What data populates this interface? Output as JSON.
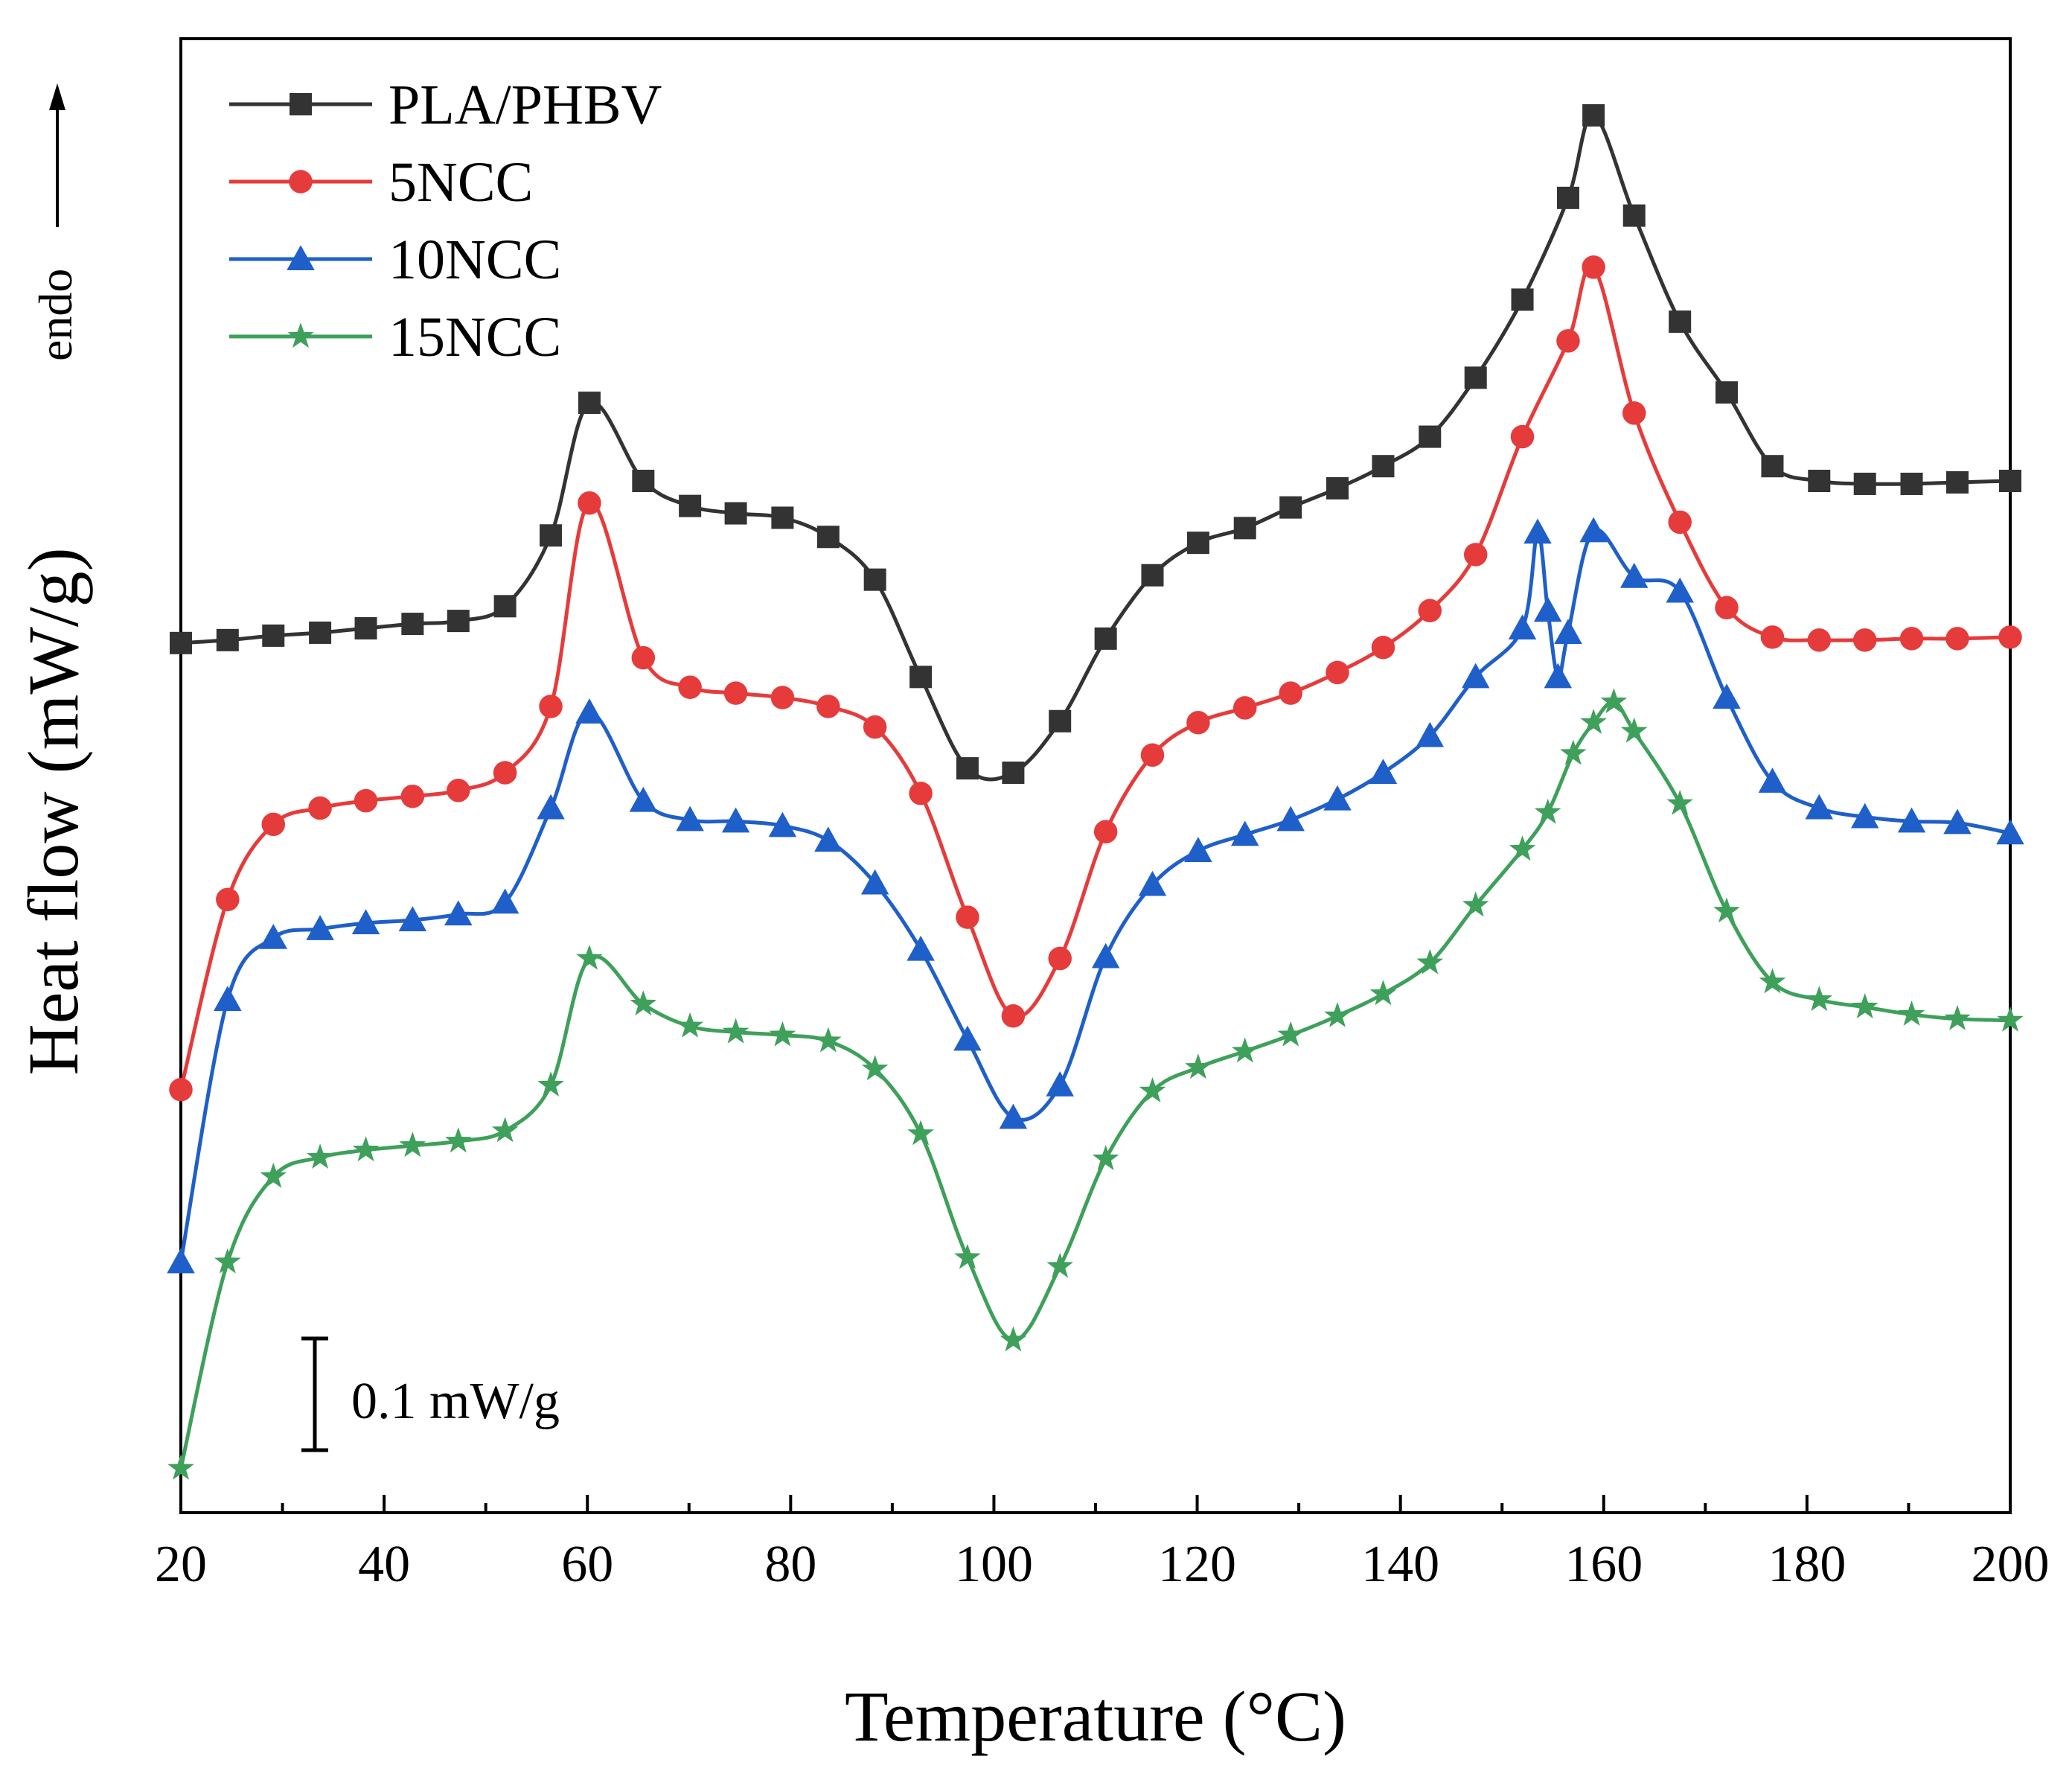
{
  "chart_data": {
    "type": "line",
    "title": "",
    "xlabel": "Temperature (°C)",
    "ylabel": "Heat flow (mW/g)",
    "endo_label": "endo",
    "xlim": [
      20,
      200
    ],
    "ylim": [
      0,
      1
    ],
    "xticks": [
      "20",
      "40",
      "60",
      "80",
      "100",
      "120",
      "140",
      "160",
      "180",
      "200"
    ],
    "yticks_shown": false,
    "grid": false,
    "legend_position": "top-left",
    "scale_bar_label": "0.1 mW/g",
    "series": [
      {
        "name": "PLA/PHBV",
        "color": "#333333",
        "marker": "square",
        "points": [
          [
            20,
            0.59
          ],
          [
            24.6,
            0.592
          ],
          [
            29.1,
            0.595
          ],
          [
            33.7,
            0.597
          ],
          [
            38.2,
            0.6
          ],
          [
            42.8,
            0.603
          ],
          [
            47.3,
            0.605
          ],
          [
            51.9,
            0.615
          ],
          [
            56.4,
            0.663
          ],
          [
            60.2,
            0.753
          ],
          [
            65.5,
            0.7
          ],
          [
            70.1,
            0.683
          ],
          [
            74.6,
            0.678
          ],
          [
            79.2,
            0.675
          ],
          [
            83.7,
            0.662
          ],
          [
            88.3,
            0.633
          ],
          [
            92.8,
            0.567
          ],
          [
            97.4,
            0.505
          ],
          [
            101.9,
            0.502
          ],
          [
            106.5,
            0.537
          ],
          [
            111,
            0.593
          ],
          [
            115.6,
            0.636
          ],
          [
            120.1,
            0.658
          ],
          [
            124.7,
            0.668
          ],
          [
            129.2,
            0.682
          ],
          [
            133.8,
            0.695
          ],
          [
            138.3,
            0.71
          ],
          [
            142.9,
            0.73
          ],
          [
            147.4,
            0.77
          ],
          [
            152,
            0.823
          ],
          [
            156.5,
            0.892
          ],
          [
            159,
            0.948
          ],
          [
            163,
            0.88
          ],
          [
            167.5,
            0.808
          ],
          [
            172.1,
            0.76
          ],
          [
            176.6,
            0.71
          ],
          [
            181.2,
            0.7
          ],
          [
            185.7,
            0.698
          ],
          [
            190.3,
            0.698
          ],
          [
            194.8,
            0.699
          ],
          [
            200,
            0.7
          ]
        ]
      },
      {
        "name": "5NCC",
        "color": "#e63b3b",
        "marker": "circle",
        "points": [
          [
            20,
            0.287
          ],
          [
            24.6,
            0.416
          ],
          [
            29.1,
            0.467
          ],
          [
            33.7,
            0.478
          ],
          [
            38.2,
            0.483
          ],
          [
            42.8,
            0.486
          ],
          [
            47.3,
            0.49
          ],
          [
            51.9,
            0.502
          ],
          [
            56.4,
            0.547
          ],
          [
            60.2,
            0.685
          ],
          [
            65.5,
            0.58
          ],
          [
            70.1,
            0.56
          ],
          [
            74.6,
            0.556
          ],
          [
            79.2,
            0.553
          ],
          [
            83.7,
            0.547
          ],
          [
            88.3,
            0.533
          ],
          [
            92.8,
            0.488
          ],
          [
            97.4,
            0.404
          ],
          [
            101.9,
            0.337
          ],
          [
            106.5,
            0.376
          ],
          [
            111,
            0.462
          ],
          [
            115.6,
            0.514
          ],
          [
            120.1,
            0.536
          ],
          [
            124.7,
            0.546
          ],
          [
            129.2,
            0.556
          ],
          [
            133.8,
            0.57
          ],
          [
            138.3,
            0.587
          ],
          [
            142.9,
            0.612
          ],
          [
            147.4,
            0.65
          ],
          [
            152,
            0.73
          ],
          [
            156.5,
            0.795
          ],
          [
            159,
            0.845
          ],
          [
            163,
            0.746
          ],
          [
            167.5,
            0.672
          ],
          [
            172.1,
            0.614
          ],
          [
            176.6,
            0.594
          ],
          [
            181.2,
            0.592
          ],
          [
            185.7,
            0.592
          ],
          [
            190.3,
            0.593
          ],
          [
            194.8,
            0.593
          ],
          [
            200,
            0.594
          ]
        ]
      },
      {
        "name": "10NCC",
        "color": "#1f5fc9",
        "marker": "triangle",
        "points": [
          [
            20,
            0.17
          ],
          [
            24.6,
            0.348
          ],
          [
            29.1,
            0.39
          ],
          [
            33.7,
            0.396
          ],
          [
            38.2,
            0.4
          ],
          [
            42.8,
            0.402
          ],
          [
            47.3,
            0.406
          ],
          [
            51.9,
            0.414
          ],
          [
            56.4,
            0.478
          ],
          [
            60.2,
            0.543
          ],
          [
            65.5,
            0.483
          ],
          [
            70.1,
            0.47
          ],
          [
            74.6,
            0.469
          ],
          [
            79.2,
            0.466
          ],
          [
            83.7,
            0.456
          ],
          [
            88.3,
            0.427
          ],
          [
            92.8,
            0.382
          ],
          [
            97.4,
            0.321
          ],
          [
            101.9,
            0.268
          ],
          [
            106.5,
            0.29
          ],
          [
            111,
            0.377
          ],
          [
            115.6,
            0.426
          ],
          [
            120.1,
            0.449
          ],
          [
            124.7,
            0.46
          ],
          [
            129.2,
            0.47
          ],
          [
            133.8,
            0.484
          ],
          [
            138.3,
            0.502
          ],
          [
            142.9,
            0.527
          ],
          [
            147.4,
            0.567
          ],
          [
            152,
            0.6
          ],
          [
            153.5,
            0.665
          ],
          [
            154.5,
            0.612
          ],
          [
            155.5,
            0.567
          ],
          [
            156.5,
            0.597
          ],
          [
            159,
            0.666
          ],
          [
            163,
            0.635
          ],
          [
            167.5,
            0.625
          ],
          [
            172.1,
            0.553
          ],
          [
            176.6,
            0.496
          ],
          [
            181.2,
            0.478
          ],
          [
            185.7,
            0.472
          ],
          [
            190.3,
            0.469
          ],
          [
            194.8,
            0.468
          ],
          [
            200,
            0.461
          ]
        ]
      },
      {
        "name": "15NCC",
        "color": "#3ea05a",
        "marker": "star",
        "points": [
          [
            20,
            0.03
          ],
          [
            24.6,
            0.17
          ],
          [
            29.1,
            0.228
          ],
          [
            33.7,
            0.241
          ],
          [
            38.2,
            0.246
          ],
          [
            42.8,
            0.249
          ],
          [
            47.3,
            0.252
          ],
          [
            51.9,
            0.259
          ],
          [
            56.4,
            0.29
          ],
          [
            60.2,
            0.376
          ],
          [
            65.5,
            0.345
          ],
          [
            70.1,
            0.33
          ],
          [
            74.6,
            0.326
          ],
          [
            79.2,
            0.324
          ],
          [
            83.7,
            0.32
          ],
          [
            88.3,
            0.301
          ],
          [
            92.8,
            0.257
          ],
          [
            97.4,
            0.173
          ],
          [
            101.9,
            0.117
          ],
          [
            106.5,
            0.167
          ],
          [
            111,
            0.24
          ],
          [
            115.6,
            0.286
          ],
          [
            120.1,
            0.302
          ],
          [
            124.7,
            0.313
          ],
          [
            129.2,
            0.324
          ],
          [
            133.8,
            0.337
          ],
          [
            138.3,
            0.352
          ],
          [
            142.9,
            0.373
          ],
          [
            147.4,
            0.412
          ],
          [
            152,
            0.45
          ],
          [
            154.5,
            0.475
          ],
          [
            157,
            0.515
          ],
          [
            159,
            0.536
          ],
          [
            161,
            0.55
          ],
          [
            163,
            0.53
          ],
          [
            167.5,
            0.481
          ],
          [
            172.1,
            0.408
          ],
          [
            176.6,
            0.36
          ],
          [
            181.2,
            0.348
          ],
          [
            185.7,
            0.343
          ],
          [
            190.3,
            0.338
          ],
          [
            194.8,
            0.335
          ],
          [
            200,
            0.334
          ]
        ]
      }
    ]
  }
}
